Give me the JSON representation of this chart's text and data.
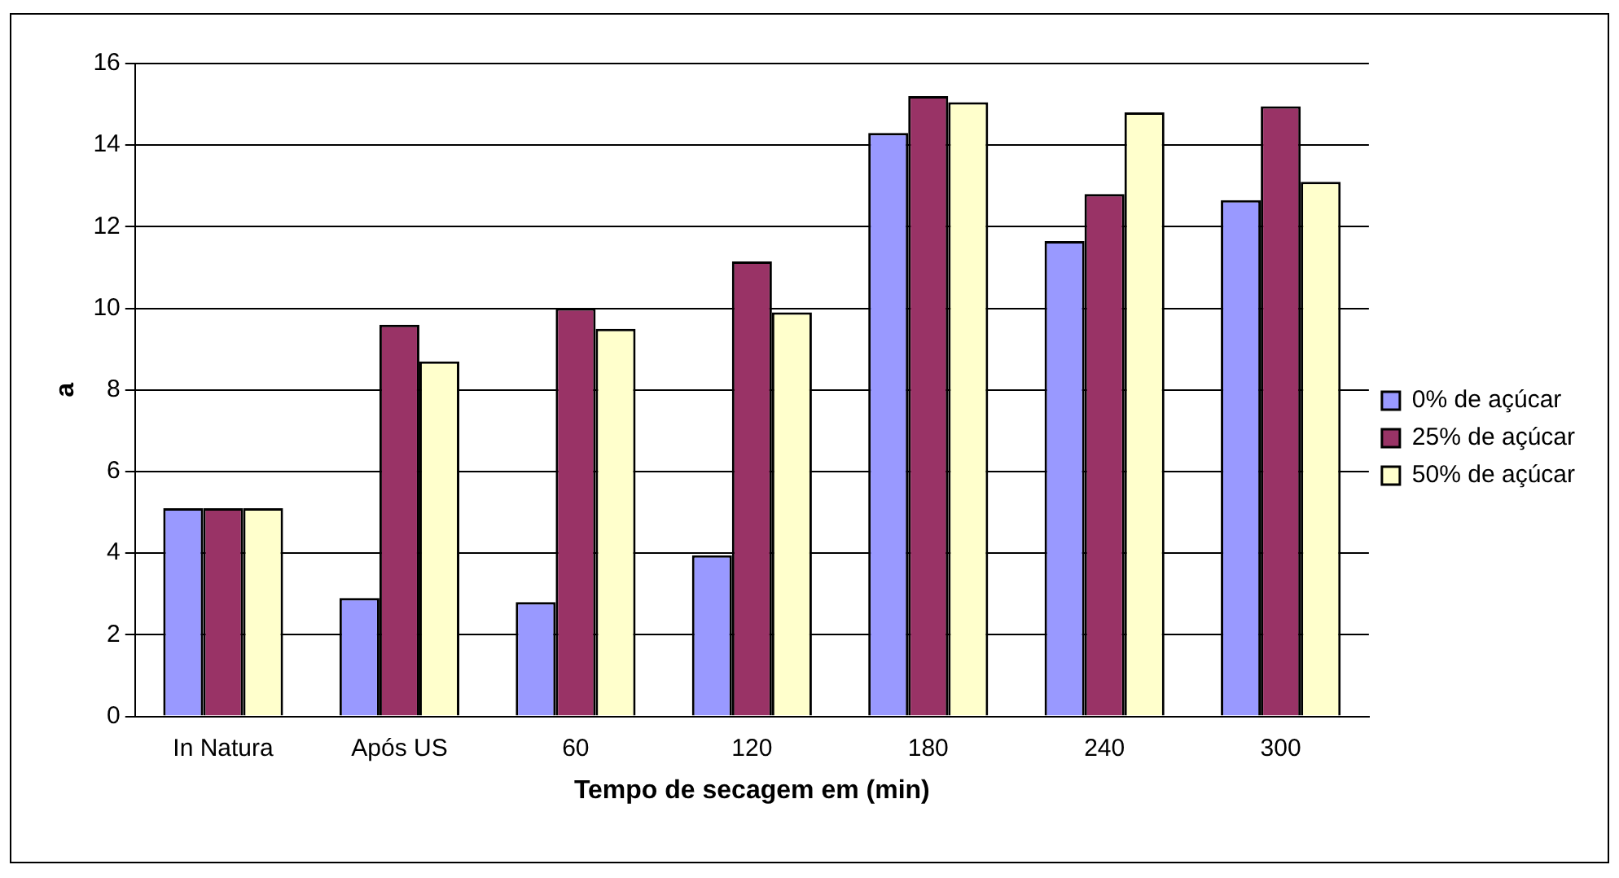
{
  "chart_data": {
    "type": "bar",
    "xlabel": "Tempo de secagem em (min)",
    "ylabel": "a",
    "categories": [
      "In Natura",
      "Após US",
      "60",
      "120",
      "180",
      "240",
      "300"
    ],
    "series": [
      {
        "name": "0% de açúcar",
        "color": "#9999ff",
        "values": [
          5.1,
          2.9,
          2.8,
          3.95,
          14.3,
          11.65,
          12.65
        ]
      },
      {
        "name": "25% de açúcar",
        "color": "#993366",
        "values": [
          5.1,
          9.6,
          10.0,
          11.15,
          15.2,
          12.8,
          14.95
        ]
      },
      {
        "name": "50% de açúcar",
        "color": "#ffffcc",
        "values": [
          5.1,
          8.7,
          9.5,
          9.9,
          15.05,
          14.8,
          13.1
        ]
      }
    ],
    "ylim": [
      0,
      16
    ],
    "yticks": [
      0,
      2,
      4,
      6,
      8,
      10,
      12,
      14,
      16
    ],
    "grid": "y",
    "legend": "right"
  }
}
